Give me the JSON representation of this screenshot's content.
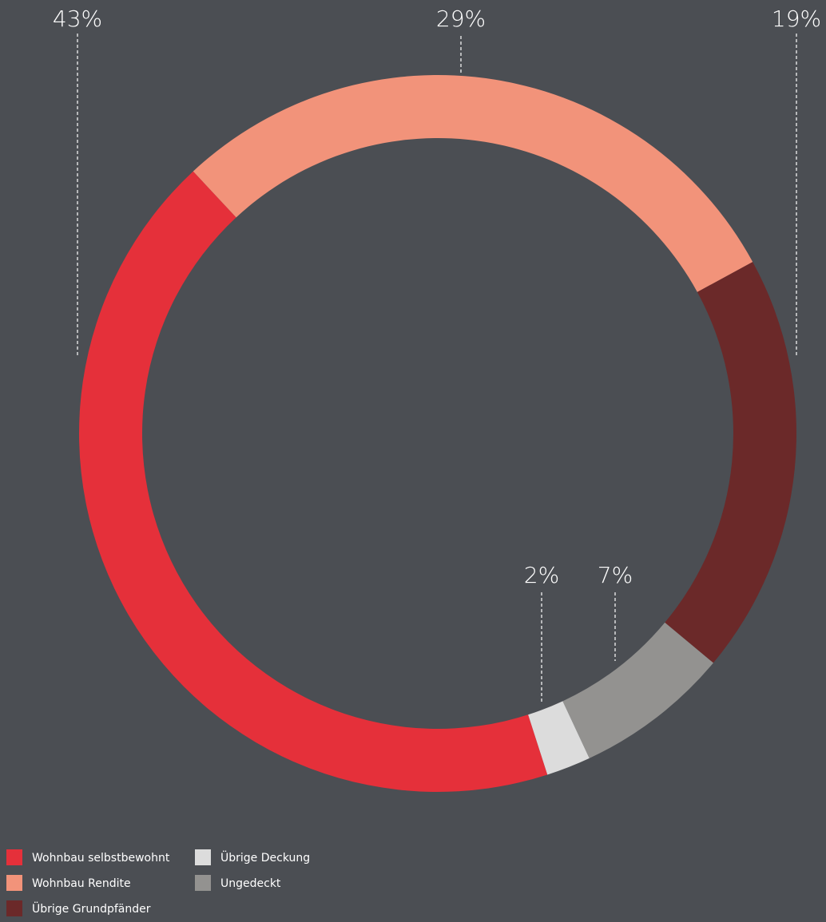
{
  "chart_data": {
    "type": "donut",
    "series": [
      {
        "name": "Wohnbau selbstbewohnt",
        "color": "#e5303a",
        "values": [
          43
        ],
        "value_labels": [
          "43%"
        ]
      },
      {
        "name": "Wohnbau Rendite",
        "color": "#f2937a",
        "values": [
          29
        ],
        "value_labels": [
          "29%"
        ]
      },
      {
        "name": "Übrige Grundpfänder",
        "color": "#6b2929",
        "values": [
          19
        ],
        "value_labels": [
          "19%"
        ]
      },
      {
        "name": "Übrige Deckung",
        "color": "#dcdcdc",
        "values": [
          2
        ],
        "value_labels": [
          "2%"
        ]
      },
      {
        "name": "Ungedeckt",
        "color": "#939290",
        "values": [
          7
        ],
        "value_labels": [
          "7%"
        ]
      }
    ]
  }
}
